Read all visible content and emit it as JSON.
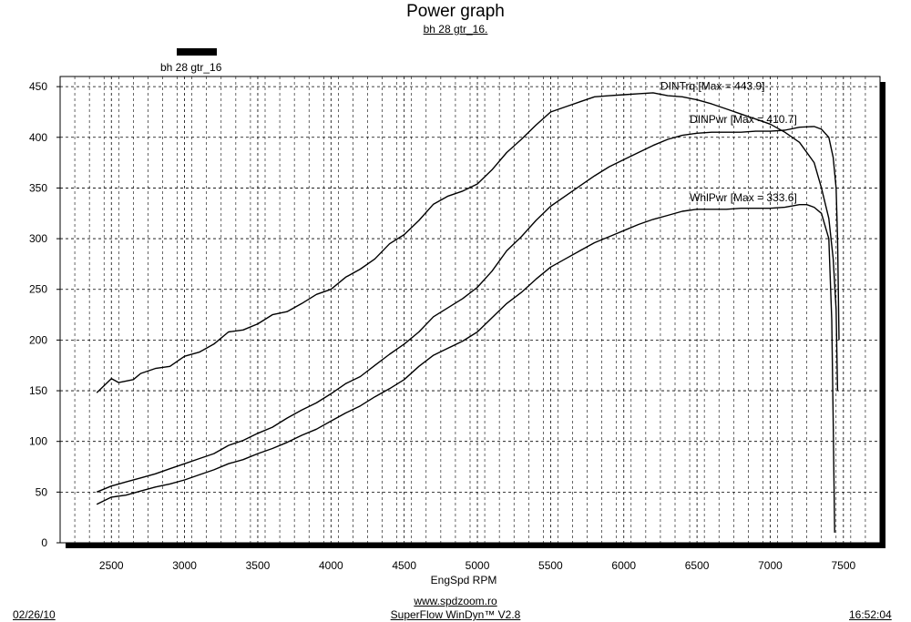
{
  "header": {
    "title": "Power graph",
    "subtitle": "bh 28 gtr_16."
  },
  "legend": {
    "label": "bh 28 gtr_16"
  },
  "footer": {
    "date": "02/26/10",
    "site": "www.spdzoom.ro",
    "software": "SuperFlow WinDyn™ V2.8",
    "time": "16:52:04"
  },
  "chart_data": {
    "type": "line",
    "title": "Power graph",
    "subtitle": "bh 28 gtr_16.",
    "xlabel": "EngSpd  RPM",
    "ylabel": "",
    "xlim": [
      2150,
      7750
    ],
    "ylim": [
      0,
      460
    ],
    "xticks": [
      2500,
      3000,
      3500,
      4000,
      4500,
      5000,
      5500,
      6000,
      6500,
      7000,
      7500
    ],
    "yticks": [
      0,
      50,
      100,
      150,
      200,
      250,
      300,
      350,
      400,
      450
    ],
    "grid": true,
    "grid_style": "dashed",
    "legend_position": "top-left",
    "series": [
      {
        "name": "DINTrq",
        "label": "DINTrq [Max = 443.9]",
        "x": [
          2400,
          2500,
          2550,
          2650,
          2700,
          2800,
          2900,
          3000,
          3100,
          3200,
          3300,
          3400,
          3500,
          3600,
          3700,
          3800,
          3900,
          4000,
          4100,
          4200,
          4300,
          4400,
          4500,
          4600,
          4700,
          4800,
          4900,
          5000,
          5100,
          5200,
          5300,
          5400,
          5500,
          5600,
          5700,
          5800,
          5900,
          6000,
          6100,
          6200,
          6300,
          6400,
          6500,
          6600,
          6700,
          6800,
          6900,
          7000,
          7100,
          7200,
          7300,
          7350,
          7400,
          7430,
          7450,
          7460
        ],
        "values": [
          148,
          162,
          158,
          161,
          167,
          172,
          174,
          184,
          188,
          196,
          208,
          210,
          216,
          225,
          228,
          236,
          245,
          250,
          262,
          270,
          280,
          295,
          304,
          318,
          334,
          342,
          347,
          354,
          368,
          385,
          398,
          412,
          425,
          430,
          435,
          440,
          441,
          442,
          443,
          443.9,
          441,
          440,
          437,
          433,
          428,
          423,
          418,
          413,
          405,
          395,
          375,
          350,
          320,
          280,
          230,
          150
        ]
      },
      {
        "name": "DINPwr",
        "label": "DINPwr [Max = 410.7]",
        "x": [
          2400,
          2500,
          2600,
          2700,
          2800,
          2900,
          3000,
          3100,
          3200,
          3300,
          3400,
          3500,
          3600,
          3700,
          3800,
          3900,
          4000,
          4100,
          4200,
          4300,
          4400,
          4500,
          4600,
          4700,
          4800,
          4900,
          5000,
          5100,
          5200,
          5300,
          5400,
          5500,
          5600,
          5700,
          5800,
          5900,
          6000,
          6100,
          6200,
          6300,
          6400,
          6500,
          6600,
          6700,
          6800,
          6900,
          7000,
          7100,
          7200,
          7300,
          7350,
          7400,
          7430,
          7450,
          7460,
          7470
        ],
        "values": [
          50,
          56,
          60,
          64,
          68,
          73,
          78,
          83,
          88,
          96,
          101,
          108,
          114,
          123,
          131,
          138,
          147,
          157,
          164,
          175,
          186,
          196,
          208,
          223,
          232,
          241,
          252,
          268,
          288,
          302,
          318,
          332,
          342,
          352,
          362,
          371,
          378,
          385,
          392,
          398,
          402,
          404,
          405,
          405,
          405,
          406,
          406,
          407,
          410,
          410.7,
          408,
          400,
          380,
          350,
          300,
          200
        ]
      },
      {
        "name": "WhlPwr",
        "label": "WhlPwr [Max = 333.6]",
        "x": [
          2400,
          2500,
          2600,
          2700,
          2800,
          2900,
          3000,
          3100,
          3200,
          3300,
          3400,
          3500,
          3600,
          3700,
          3800,
          3900,
          4000,
          4100,
          4200,
          4300,
          4400,
          4500,
          4600,
          4700,
          4800,
          4900,
          5000,
          5100,
          5200,
          5300,
          5400,
          5500,
          5600,
          5700,
          5800,
          5900,
          6000,
          6100,
          6200,
          6300,
          6400,
          6500,
          6600,
          6700,
          6800,
          6900,
          7000,
          7100,
          7200,
          7250,
          7300,
          7350,
          7400,
          7420,
          7430,
          7440
        ],
        "values": [
          38,
          45,
          47,
          51,
          55,
          58,
          62,
          67,
          72,
          78,
          82,
          88,
          93,
          99,
          106,
          112,
          120,
          128,
          135,
          144,
          152,
          161,
          174,
          185,
          192,
          199,
          208,
          222,
          236,
          247,
          260,
          272,
          280,
          288,
          296,
          302,
          308,
          314,
          319,
          323,
          327,
          329,
          329,
          329,
          330,
          330,
          330,
          331,
          333.6,
          333.6,
          331,
          325,
          300,
          220,
          120,
          10
        ]
      }
    ]
  }
}
